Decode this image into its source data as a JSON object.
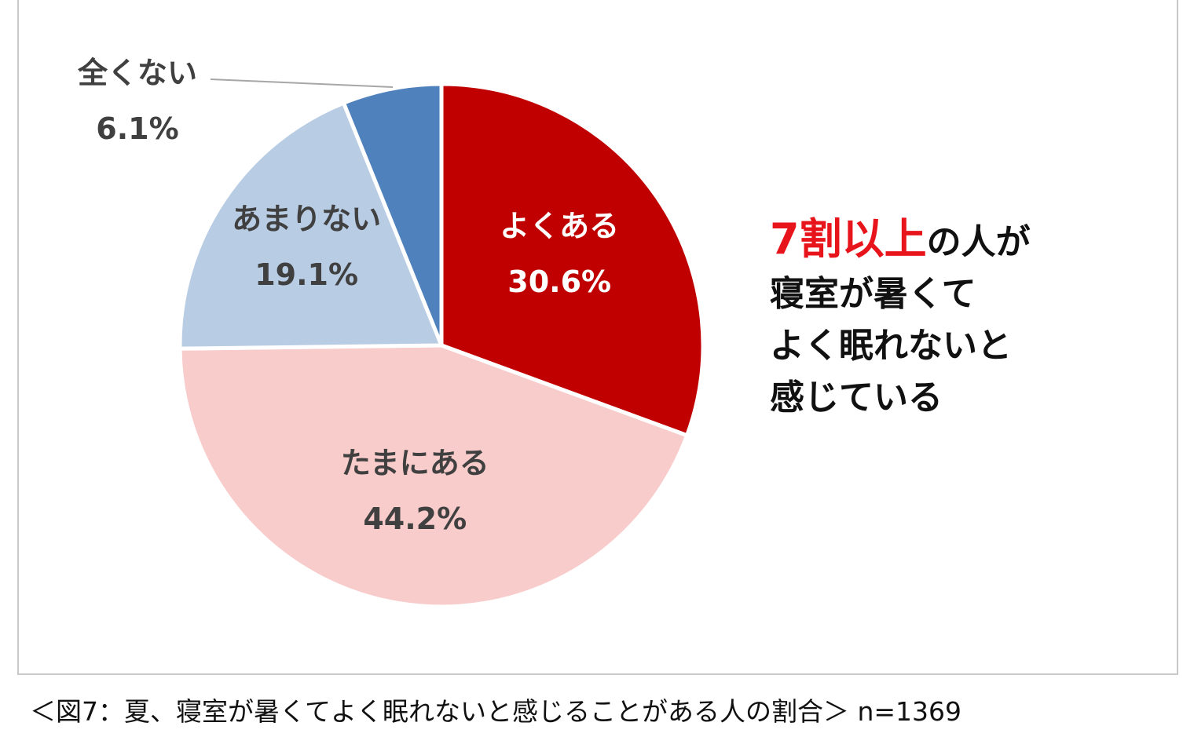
{
  "chart_data": {
    "type": "pie",
    "slices": [
      {
        "label": "よくある",
        "value": 30.6,
        "display": "30.6%",
        "color": "#c00000"
      },
      {
        "label": "たまにある",
        "value": 44.2,
        "display": "44.2%",
        "color": "#f9cccc"
      },
      {
        "label": "あまりない",
        "value": 19.1,
        "display": "19.1%",
        "color": "#b8cce4"
      },
      {
        "label": "全くない",
        "value": 6.1,
        "display": "6.1%",
        "color": "#4f81bd"
      }
    ]
  },
  "callout": {
    "highlight": "7割以上",
    "line1_rest": "の人が",
    "line2": "寝室が暑くて",
    "line3": "よく眠れないと",
    "line4": "感じている"
  },
  "caption": "＜図7：夏、寝室が暑くてよく眠れないと感じることがある人の割合＞ n=1369"
}
